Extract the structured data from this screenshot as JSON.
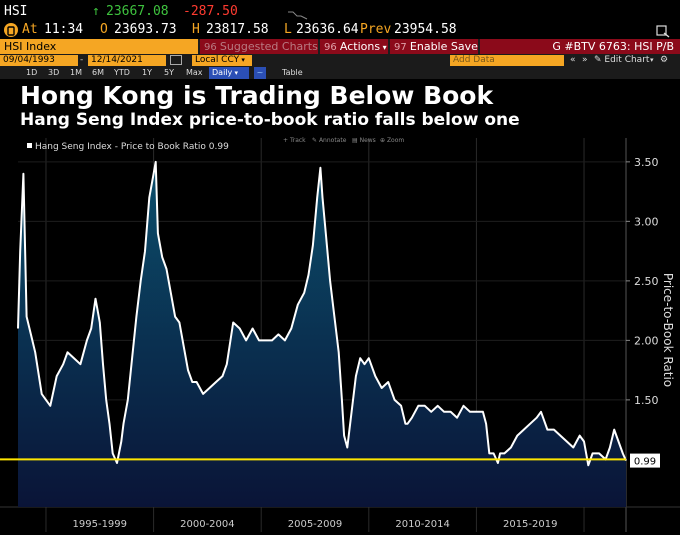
{
  "quote": {
    "ticker": "HSI",
    "up_arrow": "↑",
    "last": "23667.08",
    "change": "-287.50",
    "at_label": "At",
    "time": "11:34",
    "open_label": "O",
    "open": "23693.73",
    "high_label": "H",
    "high": "23817.58",
    "low_label": "L",
    "low": "23636.64",
    "prev_label": "Prev",
    "prev": "23954.58"
  },
  "toolbar": {
    "security": "HSI Index",
    "suggested": "Suggested Charts",
    "actions": "Actions",
    "enable_save": "Enable Save",
    "chart_id": "G #BTV 6763: HSI P/B"
  },
  "dates": {
    "start": "09/04/1993",
    "end": "12/14/2021",
    "currency": "Local CCY",
    "add_data": "Add Data",
    "edit_chart": "Edit Chart"
  },
  "periods": [
    "1D",
    "3D",
    "1M",
    "6M",
    "YTD",
    "1Y",
    "5Y",
    "Max"
  ],
  "frequency": "Daily",
  "table_label": "Table",
  "title": "Hong Kong is Trading Below Book",
  "subtitle": "Hang Seng Index price-to-book ratio falls below one",
  "chart_tools": [
    "Track",
    "Annotate",
    "News",
    "Zoom"
  ],
  "colors": {
    "accent_orange": "#f5a623",
    "up_green": "#3ec23e",
    "down_red": "#ff3b30",
    "toolbar_red": "#8b0a1a",
    "line": "#ffffff",
    "area_top": "#0b4f6c",
    "area_bottom": "#0a1437",
    "reference_line": "#ffe600"
  },
  "chart_data": {
    "type": "area",
    "legend": "Hang Seng Index - Price to Book Ratio 0.99",
    "ylabel": "Price-to-Book Ratio",
    "ylim": [
      0.6,
      3.65
    ],
    "yticks": [
      "3.50",
      "3.00",
      "2.50",
      "2.00",
      "1.50"
    ],
    "last_value_label": "0.99",
    "reference_value": 1.0,
    "x_range": [
      1993.7,
      2021.95
    ],
    "xtick_labels": [
      "1995-1999",
      "2000-2004",
      "2005-2009",
      "2010-2014",
      "2015-2019"
    ],
    "x": [
      1993.7,
      1993.8,
      1993.95,
      1994.1,
      1994.3,
      1994.5,
      1994.8,
      1995.0,
      1995.2,
      1995.5,
      1995.8,
      1996.0,
      1996.3,
      1996.6,
      1996.9,
      1997.1,
      1997.3,
      1997.5,
      1997.65,
      1997.8,
      1997.95,
      1998.1,
      1998.3,
      1998.5,
      1998.6,
      1998.8,
      1999.0,
      1999.2,
      1999.4,
      1999.6,
      1999.8,
      2000.0,
      2000.1,
      2000.2,
      2000.4,
      2000.6,
      2000.8,
      2001.0,
      2001.2,
      2001.4,
      2001.6,
      2001.8,
      2002.0,
      2002.3,
      2002.6,
      2002.9,
      2003.2,
      2003.4,
      2003.7,
      2004.0,
      2004.3,
      2004.6,
      2004.9,
      2005.2,
      2005.5,
      2005.8,
      2006.1,
      2006.4,
      2006.7,
      2007.0,
      2007.2,
      2007.4,
      2007.6,
      2007.75,
      2007.85,
      2008.0,
      2008.2,
      2008.4,
      2008.6,
      2008.75,
      2008.85,
      2009.0,
      2009.2,
      2009.4,
      2009.6,
      2009.8,
      2010.0,
      2010.3,
      2010.6,
      2010.9,
      2011.2,
      2011.5,
      2011.7,
      2011.8,
      2012.0,
      2012.3,
      2012.6,
      2012.9,
      2013.2,
      2013.5,
      2013.8,
      2014.1,
      2014.4,
      2014.7,
      2015.0,
      2015.3,
      2015.45,
      2015.6,
      2015.8,
      2016.0,
      2016.1,
      2016.3,
      2016.6,
      2016.9,
      2017.2,
      2017.5,
      2017.8,
      2018.0,
      2018.1,
      2018.3,
      2018.6,
      2018.9,
      2019.2,
      2019.5,
      2019.8,
      2020.0,
      2020.2,
      2020.4,
      2020.7,
      2021.0,
      2021.2,
      2021.4,
      2021.6,
      2021.8,
      2021.95
    ],
    "values": [
      2.1,
      2.75,
      3.4,
      2.2,
      2.05,
      1.9,
      1.55,
      1.5,
      1.45,
      1.7,
      1.8,
      1.9,
      1.85,
      1.8,
      2.0,
      2.1,
      2.35,
      2.15,
      1.8,
      1.5,
      1.3,
      1.05,
      0.97,
      1.15,
      1.3,
      1.5,
      1.85,
      2.2,
      2.5,
      2.75,
      3.2,
      3.4,
      3.5,
      2.9,
      2.7,
      2.6,
      2.4,
      2.2,
      2.15,
      1.95,
      1.75,
      1.65,
      1.65,
      1.55,
      1.6,
      1.65,
      1.7,
      1.8,
      2.15,
      2.1,
      2.0,
      2.1,
      2.0,
      2.0,
      2.0,
      2.05,
      2.0,
      2.1,
      2.3,
      2.4,
      2.55,
      2.8,
      3.2,
      3.45,
      3.2,
      2.9,
      2.5,
      2.2,
      1.9,
      1.5,
      1.2,
      1.1,
      1.4,
      1.7,
      1.85,
      1.8,
      1.85,
      1.7,
      1.6,
      1.65,
      1.5,
      1.45,
      1.3,
      1.3,
      1.35,
      1.45,
      1.45,
      1.4,
      1.45,
      1.4,
      1.4,
      1.35,
      1.45,
      1.4,
      1.4,
      1.4,
      1.3,
      1.05,
      1.05,
      0.97,
      1.05,
      1.05,
      1.1,
      1.2,
      1.25,
      1.3,
      1.35,
      1.4,
      1.35,
      1.25,
      1.25,
      1.2,
      1.15,
      1.1,
      1.2,
      1.15,
      0.95,
      1.05,
      1.05,
      1.0,
      1.1,
      1.25,
      1.15,
      1.05,
      0.99
    ]
  }
}
